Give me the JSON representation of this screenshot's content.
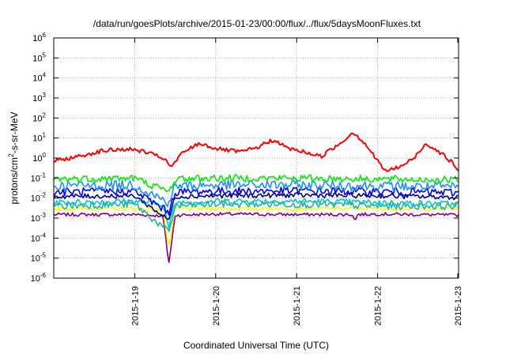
{
  "chart_data": {
    "type": "line",
    "title": "/data/run/goesPlots/archive/2015-01-23/00:00/flux/../flux/5daysMoonFluxes.txt",
    "xlabel": "Coordinated Universal Time (UTC)",
    "ylabel": {
      "base": "protons/cm",
      "sup": "2",
      "rest": "-s-sr-MeV"
    },
    "x_range": [
      "2015-01-18T00:00",
      "2015-01-23T00:00"
    ],
    "x_ticks": [
      "2015-1-19",
      "2015-1-20",
      "2015-1-21",
      "2015-1-22",
      "2015-1-23"
    ],
    "y_scale": "log",
    "y_exponent_range": [
      -6,
      6
    ],
    "y_ticks": [
      {
        "base": "10",
        "exp": "-6"
      },
      {
        "base": "10",
        "exp": "-5"
      },
      {
        "base": "10",
        "exp": "-4"
      },
      {
        "base": "10",
        "exp": "-3"
      },
      {
        "base": "10",
        "exp": "-2"
      },
      {
        "base": "10",
        "exp": "-1"
      },
      {
        "base": "10",
        "exp": "0"
      },
      {
        "base": "10",
        "exp": "1"
      },
      {
        "base": "10",
        "exp": "2"
      },
      {
        "base": "10",
        "exp": "3"
      },
      {
        "base": "10",
        "exp": "4"
      },
      {
        "base": "10",
        "exp": "5"
      },
      {
        "base": "10",
        "exp": "6"
      }
    ],
    "grid": true,
    "series": [
      {
        "color": "#800080",
        "base": [
          [
            0,
            0.0015
          ],
          [
            1,
            0.0015
          ],
          [
            1.35,
            0.0013
          ],
          [
            1.42,
            5e-06
          ],
          [
            1.5,
            0.0014
          ],
          [
            2,
            0.0016
          ],
          [
            3,
            0.0015
          ],
          [
            3.7,
            0.0015
          ],
          [
            3.72,
            0.0006
          ],
          [
            3.75,
            0.0015
          ],
          [
            4,
            0.0016
          ],
          [
            5,
            0.0014
          ]
        ],
        "noise": 0.08
      },
      {
        "color": "#ffff00",
        "base": [
          [
            0,
            0.003
          ],
          [
            1,
            0.003
          ],
          [
            1.35,
            0.0025
          ],
          [
            1.42,
            3e-05
          ],
          [
            1.5,
            0.003
          ],
          [
            2,
            0.003
          ],
          [
            3,
            0.003
          ],
          [
            4,
            0.003
          ],
          [
            5,
            0.003
          ]
        ],
        "noise": 0.1
      },
      {
        "color": "#00cccc",
        "base": [
          [
            0,
            0.006
          ],
          [
            1,
            0.007
          ],
          [
            1.35,
            0.005
          ],
          [
            1.42,
            0.0003
          ],
          [
            1.5,
            0.006
          ],
          [
            2,
            0.007
          ],
          [
            3,
            0.007
          ],
          [
            4,
            0.006
          ],
          [
            5,
            0.005
          ]
        ],
        "noise": 0.15
      },
      {
        "color": "#20b2aa",
        "base": [
          [
            0,
            0.004
          ],
          [
            1,
            0.005
          ],
          [
            1.42,
            0.0002
          ],
          [
            1.5,
            0.004
          ],
          [
            2,
            0.005
          ],
          [
            3,
            0.005
          ],
          [
            4,
            0.004
          ],
          [
            5,
            0.004
          ]
        ],
        "noise": 0.18
      },
      {
        "color": "#000080",
        "base": [
          [
            0,
            0.012
          ],
          [
            1,
            0.013
          ],
          [
            1.42,
            0.0008
          ],
          [
            1.5,
            0.012
          ],
          [
            2,
            0.013
          ],
          [
            3,
            0.014
          ],
          [
            4,
            0.013
          ],
          [
            5,
            0.011
          ]
        ],
        "noise": 0.12
      },
      {
        "color": "#0000ff",
        "base": [
          [
            0,
            0.02
          ],
          [
            1,
            0.022
          ],
          [
            1.42,
            0.002
          ],
          [
            1.5,
            0.02
          ],
          [
            2,
            0.022
          ],
          [
            3,
            0.023
          ],
          [
            4,
            0.021
          ],
          [
            5,
            0.019
          ]
        ],
        "noise": 0.2
      },
      {
        "color": "#1e90ff",
        "base": [
          [
            0,
            0.04
          ],
          [
            1,
            0.045
          ],
          [
            1.42,
            0.006
          ],
          [
            1.5,
            0.04
          ],
          [
            2,
            0.045
          ],
          [
            3,
            0.045
          ],
          [
            4,
            0.04
          ],
          [
            5,
            0.035
          ]
        ],
        "noise": 0.25
      },
      {
        "color": "#00ee00",
        "base": [
          [
            0,
            0.09
          ],
          [
            1,
            0.1
          ],
          [
            1.42,
            0.02
          ],
          [
            1.5,
            0.09
          ],
          [
            2,
            0.1
          ],
          [
            3,
            0.1
          ],
          [
            4,
            0.09
          ],
          [
            5,
            0.08
          ]
        ],
        "noise": 0.18
      },
      {
        "color": "#ff0000",
        "base": [
          [
            0,
            0.7
          ],
          [
            0.3,
            1.2
          ],
          [
            0.6,
            2.3
          ],
          [
            0.9,
            2.8
          ],
          [
            1.1,
            2.2
          ],
          [
            1.35,
            1.0
          ],
          [
            1.45,
            0.35
          ],
          [
            1.6,
            2.0
          ],
          [
            1.8,
            5.5
          ],
          [
            2.0,
            3.0
          ],
          [
            2.3,
            2.0
          ],
          [
            2.5,
            3.2
          ],
          [
            2.7,
            8.0
          ],
          [
            2.9,
            3.0
          ],
          [
            3.1,
            2.0
          ],
          [
            3.3,
            1.2
          ],
          [
            3.55,
            6.0
          ],
          [
            3.7,
            20.0
          ],
          [
            3.85,
            5.0
          ],
          [
            4.0,
            0.7
          ],
          [
            4.1,
            0.22
          ],
          [
            4.3,
            0.4
          ],
          [
            4.45,
            1.0
          ],
          [
            4.6,
            5.5
          ],
          [
            4.8,
            1.6
          ],
          [
            4.95,
            0.45
          ],
          [
            5,
            0.2
          ]
        ],
        "noise": 0.1
      }
    ]
  }
}
